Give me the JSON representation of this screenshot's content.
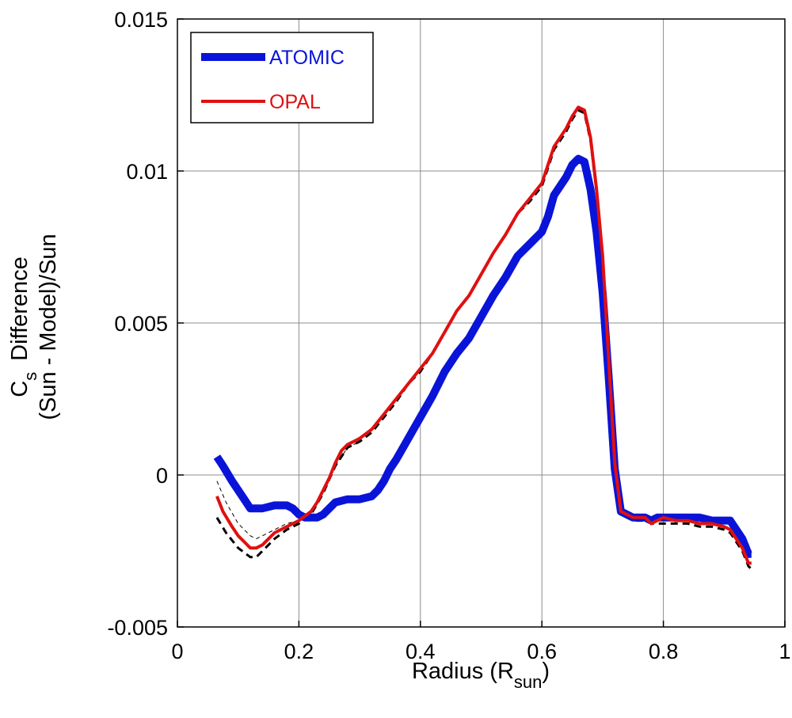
{
  "chart_data": {
    "type": "line",
    "title": "",
    "xlabel": "Radius (R",
    "xlabel_sub": "sun",
    "xlabel_close": ")",
    "ylabel_line1": "C",
    "ylabel_line1_sub": "s",
    "ylabel_line1_rest": "Difference",
    "ylabel_line2": "(Sun - Model)/Sun",
    "xlim": [
      0,
      1
    ],
    "ylim": [
      -0.005,
      0.015
    ],
    "xticks": [
      0,
      0.2,
      0.4,
      0.6,
      0.8,
      1
    ],
    "xtick_labels": [
      "0",
      "0.2",
      "0.4",
      "0.6",
      "0.8",
      "1"
    ],
    "yticks": [
      -0.005,
      0,
      0.005,
      0.01,
      0.015
    ],
    "ytick_labels": [
      "-0.005",
      "0",
      "0.005",
      "0.01",
      "0.015"
    ],
    "grid": true,
    "legend": {
      "position": "top-left",
      "entries": [
        {
          "label": "ATOMIC",
          "color": "#0a14d8"
        },
        {
          "label": "OPAL",
          "color": "#e01010"
        }
      ]
    },
    "series": [
      {
        "name": "ATOMIC",
        "color": "#0a14d8",
        "style": "solid-thick",
        "x": [
          0.065,
          0.075,
          0.09,
          0.1,
          0.11,
          0.12,
          0.14,
          0.16,
          0.18,
          0.19,
          0.2,
          0.21,
          0.22,
          0.23,
          0.24,
          0.26,
          0.28,
          0.3,
          0.32,
          0.33,
          0.34,
          0.35,
          0.36,
          0.38,
          0.4,
          0.42,
          0.44,
          0.46,
          0.48,
          0.5,
          0.52,
          0.54,
          0.56,
          0.58,
          0.6,
          0.61,
          0.62,
          0.64,
          0.65,
          0.66,
          0.67,
          0.68,
          0.69,
          0.7,
          0.71,
          0.72,
          0.73,
          0.75,
          0.76,
          0.77,
          0.78,
          0.79,
          0.8,
          0.82,
          0.84,
          0.86,
          0.88,
          0.9,
          0.91,
          0.92,
          0.93,
          0.94,
          0.945
        ],
        "values": [
          0.0006,
          0.0003,
          -0.0002,
          -0.0005,
          -0.0008,
          -0.0011,
          -0.0011,
          -0.001,
          -0.001,
          -0.0011,
          -0.0013,
          -0.0014,
          -0.0014,
          -0.0014,
          -0.0013,
          -0.0009,
          -0.0008,
          -0.0008,
          -0.0007,
          -0.0005,
          -0.0002,
          0.0002,
          0.0005,
          0.0012,
          0.0019,
          0.0026,
          0.0034,
          0.004,
          0.0045,
          0.0052,
          0.0059,
          0.0065,
          0.0072,
          0.0076,
          0.008,
          0.0085,
          0.0092,
          0.0098,
          0.0102,
          0.0104,
          0.0103,
          0.0094,
          0.008,
          0.006,
          0.0032,
          0.0002,
          -0.0012,
          -0.0014,
          -0.0014,
          -0.0014,
          -0.0015,
          -0.0014,
          -0.0014,
          -0.0014,
          -0.0014,
          -0.0014,
          -0.0015,
          -0.0015,
          -0.0015,
          -0.0018,
          -0.0021,
          -0.0026,
          -0.0026
        ]
      },
      {
        "name": "OPAL",
        "color": "#e01010",
        "style": "solid",
        "x": [
          0.065,
          0.075,
          0.09,
          0.1,
          0.11,
          0.12,
          0.13,
          0.14,
          0.15,
          0.16,
          0.18,
          0.2,
          0.22,
          0.23,
          0.24,
          0.25,
          0.26,
          0.27,
          0.28,
          0.29,
          0.3,
          0.32,
          0.34,
          0.36,
          0.38,
          0.4,
          0.42,
          0.44,
          0.46,
          0.48,
          0.5,
          0.52,
          0.54,
          0.56,
          0.58,
          0.6,
          0.61,
          0.62,
          0.64,
          0.65,
          0.66,
          0.67,
          0.68,
          0.69,
          0.7,
          0.71,
          0.72,
          0.73,
          0.75,
          0.77,
          0.78,
          0.79,
          0.8,
          0.82,
          0.84,
          0.86,
          0.88,
          0.9,
          0.91,
          0.92,
          0.93,
          0.94,
          0.945
        ],
        "values": [
          -0.0007,
          -0.0012,
          -0.0017,
          -0.002,
          -0.0022,
          -0.0024,
          -0.0024,
          -0.0023,
          -0.0021,
          -0.0019,
          -0.0017,
          -0.0015,
          -0.0012,
          -0.0009,
          -0.0005,
          -0.0001,
          0.0004,
          0.0008,
          0.001,
          0.0011,
          0.0012,
          0.0015,
          0.002,
          0.0025,
          0.003,
          0.0035,
          0.004,
          0.0047,
          0.0054,
          0.0059,
          0.0066,
          0.0073,
          0.0079,
          0.0086,
          0.0091,
          0.0096,
          0.0102,
          0.0108,
          0.0114,
          0.0118,
          0.0121,
          0.012,
          0.0111,
          0.0094,
          0.0072,
          0.0038,
          0.0004,
          -0.0012,
          -0.0014,
          -0.0014,
          -0.0016,
          -0.0015,
          -0.0014,
          -0.0015,
          -0.0015,
          -0.0016,
          -0.0016,
          -0.0017,
          -0.0018,
          -0.0021,
          -0.0024,
          -0.0029,
          -0.0029
        ]
      },
      {
        "name": "model-dashed-thick",
        "color": "#000000",
        "style": "dashed-thick",
        "x": [
          0.065,
          0.08,
          0.1,
          0.12,
          0.13,
          0.14,
          0.16,
          0.18,
          0.2,
          0.22,
          0.24,
          0.26,
          0.28,
          0.3,
          0.32,
          0.34,
          0.36,
          0.38,
          0.4,
          0.42,
          0.44,
          0.46,
          0.48,
          0.5,
          0.52,
          0.54,
          0.56,
          0.58,
          0.6,
          0.61,
          0.62,
          0.64,
          0.65,
          0.66,
          0.67,
          0.68,
          0.69,
          0.7,
          0.71,
          0.72,
          0.73,
          0.75,
          0.77,
          0.78,
          0.79,
          0.8,
          0.82,
          0.84,
          0.86,
          0.88,
          0.9,
          0.91,
          0.92,
          0.93,
          0.94,
          0.945
        ],
        "values": [
          -0.0014,
          -0.0019,
          -0.0024,
          -0.0027,
          -0.0027,
          -0.0025,
          -0.0021,
          -0.0018,
          -0.0016,
          -0.0013,
          -0.0006,
          0.0003,
          0.0009,
          0.0011,
          0.0014,
          0.0019,
          0.0024,
          0.003,
          0.0034,
          0.004,
          0.0047,
          0.0054,
          0.0059,
          0.0066,
          0.0073,
          0.0079,
          0.0086,
          0.009,
          0.0095,
          0.0101,
          0.0107,
          0.0113,
          0.0117,
          0.012,
          0.0119,
          0.011,
          0.0093,
          0.0071,
          0.0037,
          0.0003,
          -0.0013,
          -0.0015,
          -0.0015,
          -0.0016,
          -0.0016,
          -0.0016,
          -0.0016,
          -0.0016,
          -0.0017,
          -0.0017,
          -0.0018,
          -0.0019,
          -0.0022,
          -0.0025,
          -0.003,
          -0.0031
        ]
      },
      {
        "name": "model-dashed-thin",
        "color": "#000000",
        "style": "dashed-thin",
        "x": [
          0.065,
          0.08,
          0.1,
          0.12,
          0.13,
          0.14,
          0.16,
          0.18,
          0.2,
          0.22,
          0.24,
          0.26,
          0.28,
          0.3
        ],
        "values": [
          -0.0002,
          -0.0009,
          -0.0016,
          -0.002,
          -0.0021,
          -0.002,
          -0.0018,
          -0.0016,
          -0.0015,
          -0.0012,
          -0.0006,
          0.0003,
          0.0009,
          0.0011
        ]
      }
    ]
  }
}
